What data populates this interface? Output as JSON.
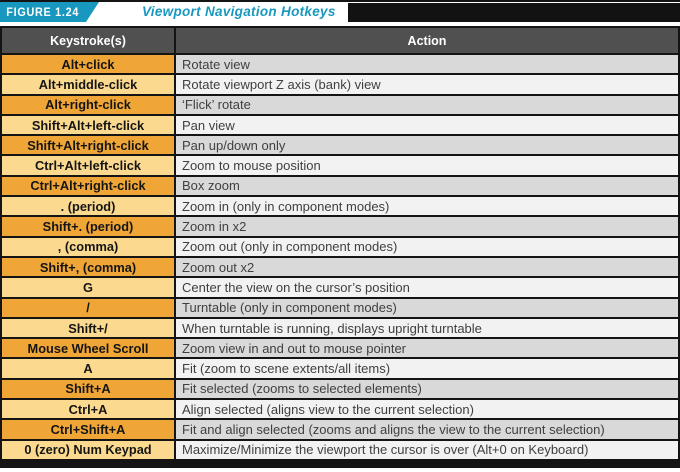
{
  "figure": {
    "label": "FIGURE 1.24",
    "title": "Viewport Navigation Hotkeys"
  },
  "colors": {
    "teal": "#1898be",
    "border": "#141414",
    "header_bg": "#505050",
    "key_odd_bg": "#f0a636",
    "key_even_bg": "#fbd98f",
    "action_odd_bg": "#d9d9d9",
    "action_even_bg": "#f2f2f2"
  },
  "table": {
    "headers": [
      "Keystroke(s)",
      "Action"
    ],
    "rows": [
      {
        "keystroke": "Alt+click",
        "action": "Rotate view"
      },
      {
        "keystroke": "Alt+middle-click",
        "action": "Rotate viewport Z axis (bank) view"
      },
      {
        "keystroke": "Alt+right-click",
        "action": "‘Flick’ rotate"
      },
      {
        "keystroke": "Shift+Alt+left-click",
        "action": "Pan view"
      },
      {
        "keystroke": "Shift+Alt+right-click",
        "action": "Pan up/down only"
      },
      {
        "keystroke": "Ctrl+Alt+left-click",
        "action": "Zoom to mouse position"
      },
      {
        "keystroke": "Ctrl+Alt+right-click",
        "action": "Box zoom"
      },
      {
        "keystroke": ". (period)",
        "action": "Zoom in (only in component modes)"
      },
      {
        "keystroke": "Shift+. (period)",
        "action": "Zoom in x2"
      },
      {
        "keystroke": ", (comma)",
        "action": "Zoom out (only in component modes)"
      },
      {
        "keystroke": "Shift+, (comma)",
        "action": "Zoom out x2"
      },
      {
        "keystroke": "G",
        "action": "Center the view on the cursor’s position"
      },
      {
        "keystroke": "/",
        "action": "Turntable (only in component modes)"
      },
      {
        "keystroke": "Shift+/",
        "action": "When turntable is running, displays upright turntable"
      },
      {
        "keystroke": "Mouse Wheel Scroll",
        "action": "Zoom view in and out to mouse pointer"
      },
      {
        "keystroke": "A",
        "action": "Fit (zoom to scene extents/all items)"
      },
      {
        "keystroke": "Shift+A",
        "action": "Fit selected (zooms to selected elements)"
      },
      {
        "keystroke": "Ctrl+A",
        "action": "Align selected (aligns view to the current selection)"
      },
      {
        "keystroke": "Ctrl+Shift+A",
        "action": "Fit and align selected (zooms and aligns the view to the current selection)"
      },
      {
        "keystroke": "0 (zero) Num Keypad",
        "action": "Maximize/Minimize the viewport the cursor is over (Alt+0 on Keyboard)"
      }
    ]
  }
}
